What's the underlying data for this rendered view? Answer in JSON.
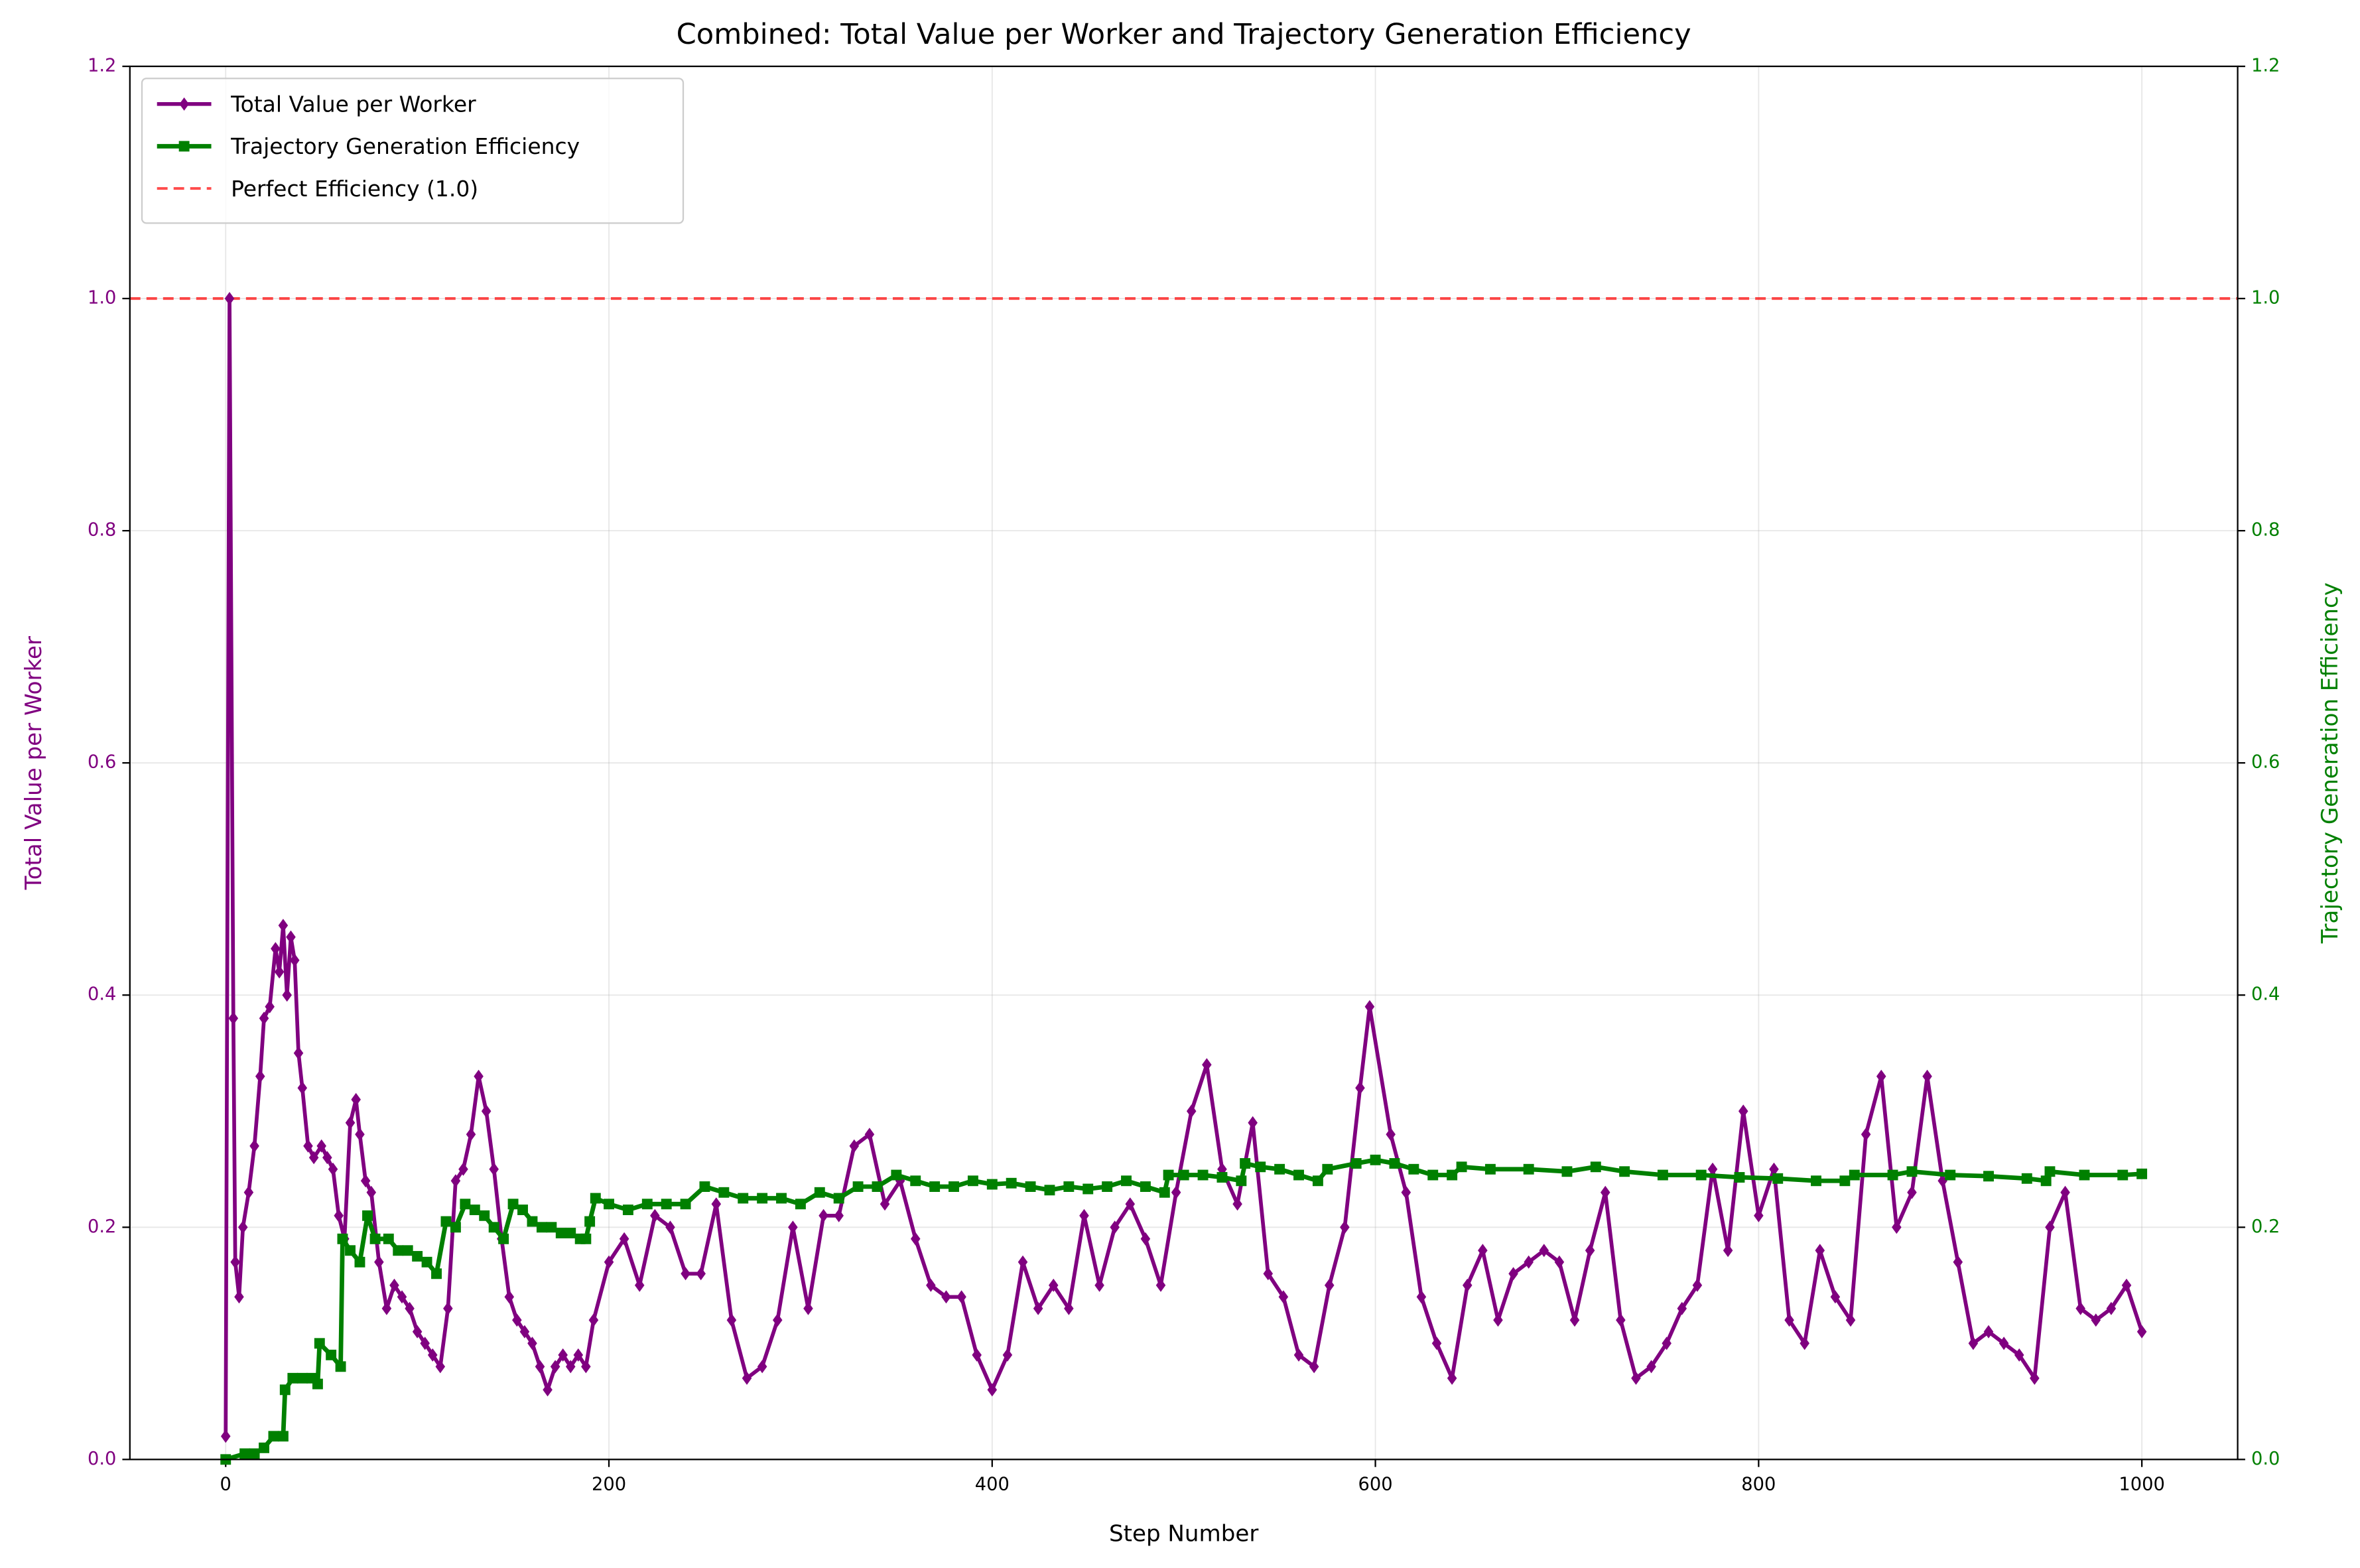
{
  "chart_data": {
    "type": "line",
    "title": "Combined: Total Value per Worker and Trajectory Generation Efficiency",
    "xlabel": "Step Number",
    "ylabel": "Total Value per Worker",
    "y2label": "Trajectory Generation Efficiency",
    "ylabel_color": "#800080",
    "y2label_color": "#008000",
    "xlim": [
      -50,
      1050
    ],
    "ylim": [
      0,
      1.2
    ],
    "y2lim": [
      0,
      1.2
    ],
    "xticks": [
      0,
      200,
      400,
      600,
      800,
      1000
    ],
    "yticks": [
      {
        "value": 0,
        "label": "0.0"
      },
      0.2,
      0.4,
      0.6,
      0.8,
      {
        "value": 1,
        "label": "1.0"
      },
      1.2
    ],
    "y2ticks": [
      {
        "value": 0,
        "label": "0.0"
      },
      0.2,
      0.4,
      0.6,
      0.8,
      {
        "value": 1,
        "label": "1.0"
      },
      1.2
    ],
    "grid": true,
    "legend": "upper left",
    "series": [
      {
        "name": "Total Value per Worker",
        "color": "#800080",
        "marker": "diamond",
        "axis": "y",
        "x": [
          0,
          2,
          4,
          5,
          7,
          9,
          12,
          15,
          18,
          20,
          23,
          26,
          28,
          30,
          32,
          34,
          36,
          38,
          40,
          43,
          46,
          50,
          53,
          56,
          59,
          62,
          65,
          68,
          70,
          73,
          76,
          80,
          84,
          88,
          92,
          96,
          100,
          104,
          108,
          112,
          116,
          120,
          124,
          128,
          132,
          136,
          140,
          144,
          148,
          152,
          156,
          160,
          164,
          168,
          172,
          176,
          180,
          184,
          188,
          192,
          200,
          208,
          216,
          224,
          232,
          240,
          248,
          256,
          264,
          272,
          280,
          288,
          296,
          304,
          312,
          320,
          328,
          336,
          344,
          352,
          360,
          368,
          376,
          384,
          392,
          400,
          408,
          416,
          424,
          432,
          440,
          448,
          456,
          464,
          472,
          480,
          488,
          496,
          504,
          512,
          520,
          528,
          536,
          544,
          552,
          560,
          568,
          576,
          584,
          592,
          597,
          608,
          616,
          624,
          632,
          640,
          648,
          656,
          664,
          672,
          680,
          688,
          696,
          704,
          712,
          720,
          728,
          736,
          744,
          752,
          760,
          768,
          776,
          784,
          792,
          800,
          808,
          816,
          824,
          832,
          840,
          848,
          856,
          864,
          872,
          880,
          888,
          896,
          904,
          912,
          920,
          928,
          936,
          944,
          952,
          960,
          968,
          976,
          984,
          992,
          1000
        ],
        "values": [
          0.02,
          1.0,
          0.38,
          0.17,
          0.14,
          0.2,
          0.23,
          0.27,
          0.33,
          0.38,
          0.39,
          0.44,
          0.42,
          0.46,
          0.4,
          0.45,
          0.43,
          0.35,
          0.32,
          0.27,
          0.26,
          0.27,
          0.26,
          0.25,
          0.21,
          0.19,
          0.29,
          0.31,
          0.28,
          0.24,
          0.23,
          0.17,
          0.13,
          0.15,
          0.14,
          0.13,
          0.11,
          0.1,
          0.09,
          0.08,
          0.13,
          0.24,
          0.25,
          0.28,
          0.33,
          0.3,
          0.25,
          0.19,
          0.14,
          0.12,
          0.11,
          0.1,
          0.08,
          0.06,
          0.08,
          0.09,
          0.08,
          0.09,
          0.08,
          0.12,
          0.17,
          0.19,
          0.15,
          0.21,
          0.2,
          0.16,
          0.16,
          0.22,
          0.12,
          0.07,
          0.08,
          0.12,
          0.2,
          0.13,
          0.21,
          0.21,
          0.27,
          0.28,
          0.22,
          0.24,
          0.19,
          0.15,
          0.14,
          0.14,
          0.09,
          0.06,
          0.09,
          0.17,
          0.13,
          0.15,
          0.13,
          0.21,
          0.15,
          0.2,
          0.22,
          0.19,
          0.15,
          0.23,
          0.3,
          0.34,
          0.25,
          0.22,
          0.29,
          0.16,
          0.14,
          0.09,
          0.08,
          0.15,
          0.2,
          0.32,
          0.39,
          0.28,
          0.23,
          0.14,
          0.1,
          0.07,
          0.15,
          0.18,
          0.12,
          0.16,
          0.17,
          0.18,
          0.17,
          0.12,
          0.18,
          0.23,
          0.12,
          0.07,
          0.08,
          0.1,
          0.13,
          0.15,
          0.25,
          0.18,
          0.3,
          0.21,
          0.25,
          0.12,
          0.1,
          0.18,
          0.14,
          0.12,
          0.28,
          0.33,
          0.2,
          0.23,
          0.33,
          0.24,
          0.17,
          0.1,
          0.11,
          0.1,
          0.09,
          0.07,
          0.2,
          0.23,
          0.13,
          0.12,
          0.13,
          0.15,
          0.11
        ]
      },
      {
        "name": "Trajectory Generation Efficiency",
        "color": "#008000",
        "marker": "square",
        "axis": "y2",
        "x": [
          0,
          10,
          15,
          20,
          25,
          30,
          31,
          35,
          40,
          45,
          48,
          49,
          55,
          60,
          61,
          65,
          70,
          74,
          78,
          85,
          90,
          95,
          100,
          105,
          110,
          115,
          120,
          125,
          130,
          135,
          140,
          145,
          150,
          155,
          160,
          165,
          170,
          175,
          180,
          185,
          188,
          190,
          193,
          200,
          210,
          220,
          230,
          240,
          250,
          260,
          270,
          280,
          290,
          300,
          310,
          320,
          330,
          340,
          350,
          360,
          370,
          380,
          390,
          400,
          410,
          420,
          430,
          440,
          450,
          460,
          470,
          480,
          490,
          492,
          500,
          510,
          520,
          530,
          532,
          540,
          550,
          560,
          570,
          575,
          590,
          600,
          610,
          620,
          630,
          640,
          645,
          660,
          680,
          700,
          715,
          730,
          750,
          770,
          790,
          810,
          830,
          845,
          850,
          870,
          880,
          900,
          920,
          940,
          950,
          952,
          970,
          990,
          1000
        ],
        "values": [
          0,
          0.005,
          0.005,
          0.01,
          0.02,
          0.02,
          0.06,
          0.07,
          0.07,
          0.07,
          0.065,
          0.1,
          0.09,
          0.08,
          0.19,
          0.18,
          0.17,
          0.21,
          0.19,
          0.19,
          0.18,
          0.18,
          0.175,
          0.17,
          0.16,
          0.205,
          0.2,
          0.22,
          0.215,
          0.21,
          0.2,
          0.19,
          0.22,
          0.215,
          0.205,
          0.2,
          0.2,
          0.195,
          0.195,
          0.19,
          0.19,
          0.205,
          0.225,
          0.22,
          0.215,
          0.22,
          0.22,
          0.22,
          0.235,
          0.23,
          0.225,
          0.225,
          0.225,
          0.22,
          0.23,
          0.225,
          0.235,
          0.235,
          0.245,
          0.24,
          0.235,
          0.235,
          0.24,
          0.237,
          0.238,
          0.235,
          0.232,
          0.235,
          0.233,
          0.235,
          0.24,
          0.235,
          0.23,
          0.245,
          0.245,
          0.245,
          0.243,
          0.24,
          0.255,
          0.252,
          0.25,
          0.245,
          0.24,
          0.25,
          0.255,
          0.258,
          0.255,
          0.25,
          0.245,
          0.245,
          0.252,
          0.25,
          0.25,
          0.248,
          0.252,
          0.248,
          0.245,
          0.245,
          0.243,
          0.242,
          0.24,
          0.24,
          0.245,
          0.245,
          0.248,
          0.245,
          0.244,
          0.242,
          0.24,
          0.248,
          0.245,
          0.245,
          0.246
        ]
      }
    ],
    "reference_line": {
      "name": "Perfect Efficiency (1.0)",
      "value": 1,
      "color": "#ff0000",
      "axis": "y2"
    }
  }
}
